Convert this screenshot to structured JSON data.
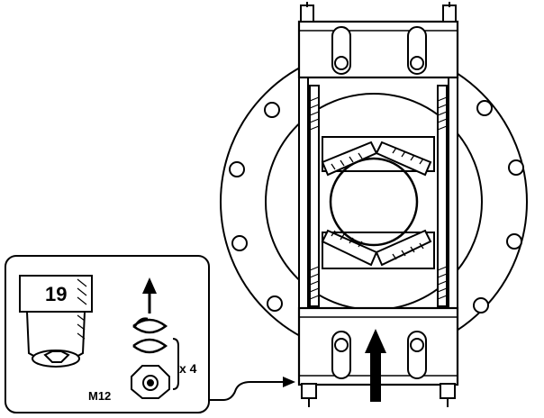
{
  "callout": {
    "wrench_size": "19",
    "bolt_size": "M12",
    "quantity": "x 4"
  },
  "colors": {
    "ink": "#000000",
    "paper": "#ffffff"
  }
}
